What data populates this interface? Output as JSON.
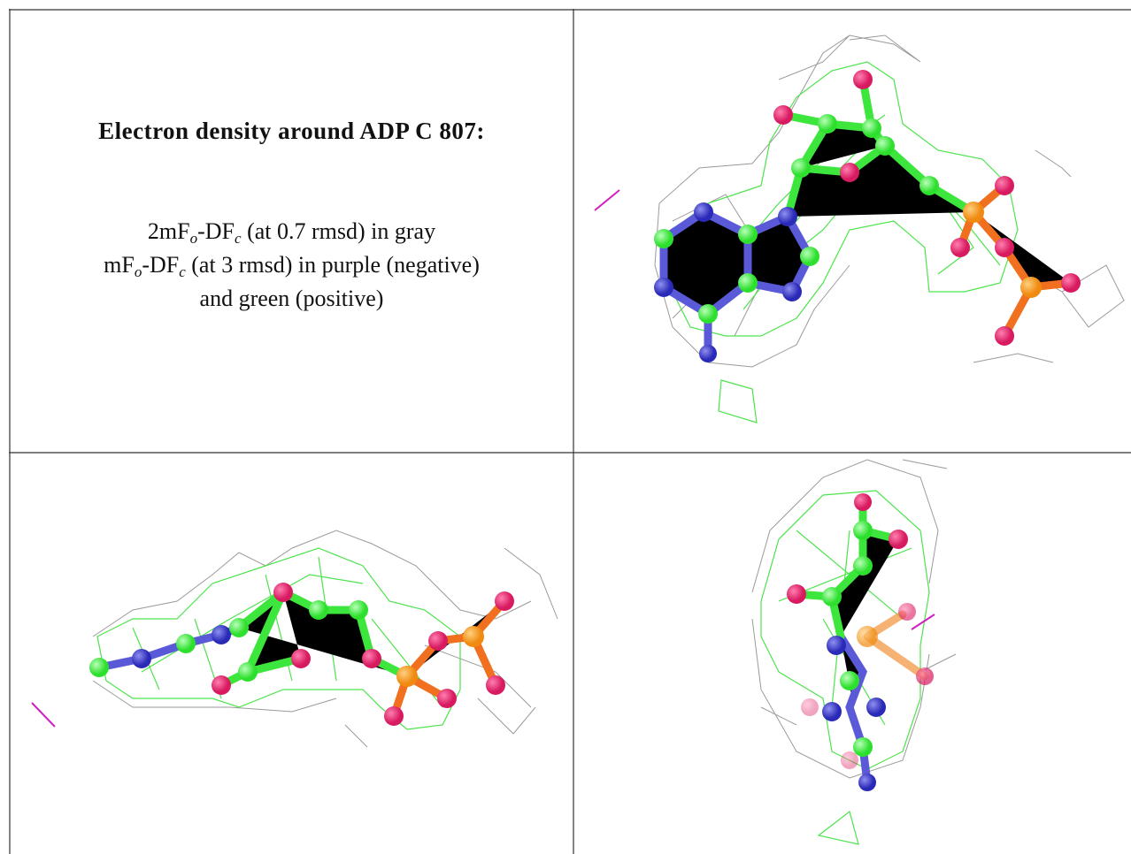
{
  "legend": {
    "title": "Electron density around ADP C 807:",
    "lines": [
      [
        {
          "text": "2mF"
        },
        {
          "sub": "o"
        },
        {
          "text": "-DF"
        },
        {
          "sub": "c"
        },
        {
          "text": " (at 0.7 rmsd) in gray"
        }
      ],
      [
        {
          "text": "mF"
        },
        {
          "sub": "o"
        },
        {
          "text": "-DF"
        },
        {
          "sub": "c"
        },
        {
          "text": " (at 3 rmsd) in purple (negative)"
        }
      ],
      [
        {
          "text": "and green (positive)"
        }
      ]
    ]
  }
}
